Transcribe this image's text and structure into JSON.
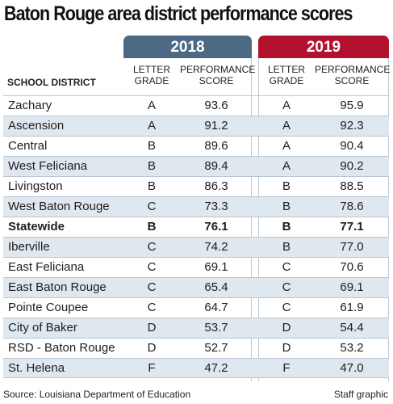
{
  "title": "Baton Rouge area district performance scores",
  "colors": {
    "header_2018": "#4d6a85",
    "header_2019": "#b3122e",
    "row_shade": "#dfe7ef"
  },
  "headers": {
    "year_2018": "2018",
    "year_2019": "2019",
    "district": "SCHOOL DISTRICT",
    "letter_grade_line1": "LETTER",
    "letter_grade_line2": "GRADE",
    "score_line1": "PERFORMANCE",
    "score_line2": "SCORE"
  },
  "source": "Source: Louisiana Department of Education",
  "credit": "Staff graphic",
  "chart_data": {
    "type": "table",
    "title": "Baton Rouge area district performance scores",
    "columns": [
      "SCHOOL DISTRICT",
      "2018 LETTER GRADE",
      "2018 PERFORMANCE SCORE",
      "2019 LETTER GRADE",
      "2019 PERFORMANCE SCORE"
    ],
    "rows": [
      {
        "district": "Zachary",
        "grade_2018": "A",
        "score_2018": "93.6",
        "grade_2019": "A",
        "score_2019": "95.9"
      },
      {
        "district": "Ascension",
        "grade_2018": "A",
        "score_2018": "91.2",
        "grade_2019": "A",
        "score_2019": "92.3"
      },
      {
        "district": "Central",
        "grade_2018": "B",
        "score_2018": "89.6",
        "grade_2019": "A",
        "score_2019": "90.4"
      },
      {
        "district": "West Feliciana",
        "grade_2018": "B",
        "score_2018": "89.4",
        "grade_2019": "A",
        "score_2019": "90.2"
      },
      {
        "district": "Livingston",
        "grade_2018": "B",
        "score_2018": "86.3",
        "grade_2019": "B",
        "score_2019": "88.5"
      },
      {
        "district": "West Baton Rouge",
        "grade_2018": "C",
        "score_2018": "73.3",
        "grade_2019": "B",
        "score_2019": "78.6"
      },
      {
        "district": "Statewide",
        "grade_2018": "B",
        "score_2018": "76.1",
        "grade_2019": "B",
        "score_2019": "77.1",
        "emphasis": true
      },
      {
        "district": "Iberville",
        "grade_2018": "C",
        "score_2018": "74.2",
        "grade_2019": "B",
        "score_2019": "77.0"
      },
      {
        "district": "East Feliciana",
        "grade_2018": "C",
        "score_2018": "69.1",
        "grade_2019": "C",
        "score_2019": "70.6"
      },
      {
        "district": "East Baton Rouge",
        "grade_2018": "C",
        "score_2018": "65.4",
        "grade_2019": "C",
        "score_2019": "69.1"
      },
      {
        "district": "Pointe Coupee",
        "grade_2018": "C",
        "score_2018": "64.7",
        "grade_2019": "C",
        "score_2019": "61.9"
      },
      {
        "district": "City of Baker",
        "grade_2018": "D",
        "score_2018": "53.7",
        "grade_2019": "D",
        "score_2019": "54.4"
      },
      {
        "district": "RSD - Baton Rouge",
        "grade_2018": "D",
        "score_2018": "52.7",
        "grade_2019": "D",
        "score_2019": "53.2"
      },
      {
        "district": "St. Helena",
        "grade_2018": "F",
        "score_2018": "47.2",
        "grade_2019": "F",
        "score_2019": "47.0"
      }
    ]
  }
}
